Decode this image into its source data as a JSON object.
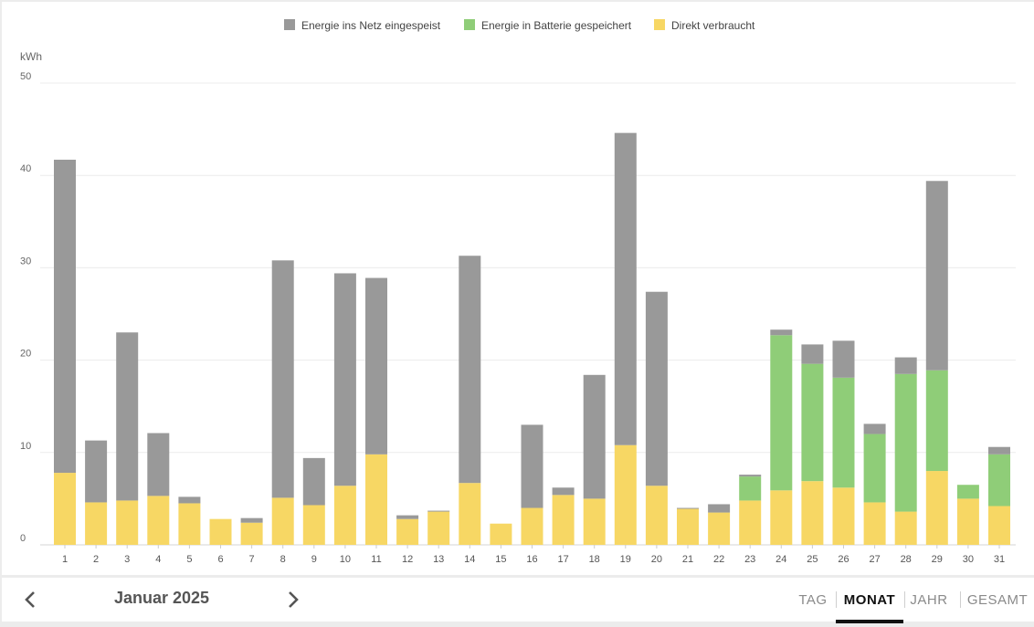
{
  "chart_data": {
    "type": "bar",
    "stacked": true,
    "ylabel": "kWh",
    "ylim": [
      0,
      50
    ],
    "yticks": [
      0,
      10,
      20,
      30,
      40,
      50
    ],
    "grid": true,
    "legend_position": "top-center",
    "categories": [
      "1",
      "2",
      "3",
      "4",
      "5",
      "6",
      "7",
      "8",
      "9",
      "10",
      "11",
      "12",
      "13",
      "14",
      "15",
      "16",
      "17",
      "18",
      "19",
      "20",
      "21",
      "22",
      "23",
      "24",
      "25",
      "26",
      "27",
      "28",
      "29",
      "30",
      "31"
    ],
    "series": [
      {
        "name": "Direkt verbraucht",
        "color": "#f7d764",
        "values": [
          7.8,
          4.6,
          4.8,
          5.3,
          4.5,
          2.8,
          2.4,
          5.1,
          4.3,
          6.4,
          9.8,
          2.8,
          3.6,
          6.7,
          2.3,
          4.0,
          5.4,
          5.0,
          10.8,
          6.4,
          3.9,
          3.5,
          4.8,
          5.9,
          6.9,
          6.2,
          4.6,
          3.6,
          8.0,
          5.0,
          4.2
        ]
      },
      {
        "name": "Energie in Batterie gespeichert",
        "color": "#8fcd78",
        "values": [
          0,
          0,
          0,
          0,
          0,
          0,
          0,
          0,
          0,
          0,
          0,
          0,
          0,
          0,
          0,
          0,
          0,
          0,
          0,
          0,
          0,
          0,
          2.6,
          16.8,
          12.7,
          11.9,
          7.4,
          14.9,
          10.9,
          1.5,
          5.6
        ]
      },
      {
        "name": "Energie ins Netz eingespeist",
        "color": "#999999",
        "values": [
          33.9,
          6.7,
          18.2,
          6.8,
          0.7,
          0,
          0.5,
          25.7,
          5.1,
          23.0,
          19.1,
          0.4,
          0.1,
          24.6,
          0,
          9.0,
          0.8,
          13.4,
          33.8,
          21.0,
          0.1,
          0.9,
          0.2,
          0.6,
          2.1,
          4.0,
          1.1,
          1.8,
          20.5,
          0,
          0.8
        ]
      }
    ],
    "legend_order": [
      "Energie ins Netz eingespeist",
      "Energie in Batterie gespeichert",
      "Direkt verbraucht"
    ]
  },
  "navigation": {
    "period_label": "Januar 2025",
    "prev_icon": "chevron-left-icon",
    "next_icon": "chevron-right-icon"
  },
  "tabs": [
    {
      "id": "tag",
      "label": "TAG",
      "active": false
    },
    {
      "id": "monat",
      "label": "MONAT",
      "active": true
    },
    {
      "id": "jahr",
      "label": "JAHR",
      "active": false
    },
    {
      "id": "gesamt",
      "label": "GESAMT",
      "active": false
    }
  ]
}
